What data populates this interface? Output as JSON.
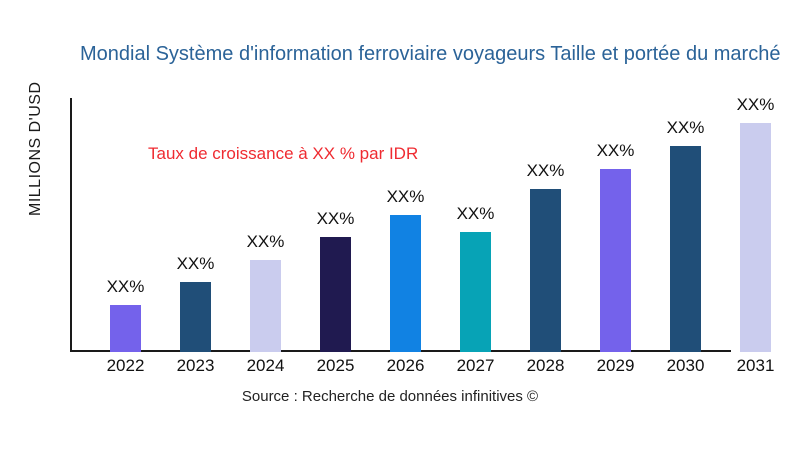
{
  "chart_data": {
    "type": "bar",
    "title": "Mondial Système d'information ferroviaire voyageurs Taille et portée du marché",
    "ylabel": "MILLIONS D'USD",
    "growth_note": "Taux de croissance à XX % par IDR",
    "source": "Source : Recherche de données infinitives ©",
    "grid": false,
    "legend": "none",
    "value_axis": "unlabeled (values masked as XX% placeholders)",
    "categories": [
      "2022",
      "2023",
      "2024",
      "2025",
      "2026",
      "2027",
      "2028",
      "2029",
      "2030",
      "2031"
    ],
    "bars": [
      {
        "year": "2022",
        "value_label": "XX%",
        "relative_height": 20.5,
        "color": "#7462EB"
      },
      {
        "year": "2023",
        "value_label": "XX%",
        "relative_height": 30.5,
        "color": "#204E78"
      },
      {
        "year": "2024",
        "value_label": "XX%",
        "relative_height": 40,
        "color": "#CACCEE"
      },
      {
        "year": "2025",
        "value_label": "XX%",
        "relative_height": 50,
        "color": "#201A50"
      },
      {
        "year": "2026",
        "value_label": "XX%",
        "relative_height": 60,
        "color": "#1182E3"
      },
      {
        "year": "2027",
        "value_label": "XX%",
        "relative_height": 52.5,
        "color": "#07A3B6"
      },
      {
        "year": "2028",
        "value_label": "XX%",
        "relative_height": 71,
        "color": "#204E78"
      },
      {
        "year": "2029",
        "value_label": "XX%",
        "relative_height": 80,
        "color": "#7462EB"
      },
      {
        "year": "2030",
        "value_label": "XX%",
        "relative_height": 90,
        "color": "#204E78"
      },
      {
        "year": "2031",
        "value_label": "XX%",
        "relative_height": 100,
        "color": "#CACCEE"
      }
    ],
    "colors": {
      "title": "#2B6398",
      "growth_note": "#EF2B31",
      "axis": "#1A1A1A",
      "text": "#111111"
    }
  }
}
